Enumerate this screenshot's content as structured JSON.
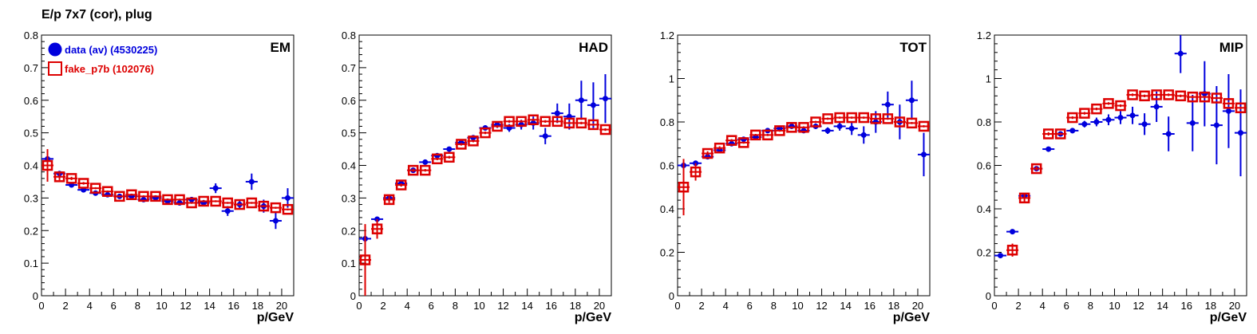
{
  "title": "E/p 7x7 (cor), plug",
  "colors": {
    "data": "#0000dd",
    "fake": "#dd0000"
  },
  "legend": [
    {
      "label": "data (av) (4530225)",
      "marker": "filled-circle",
      "color": "#0000dd"
    },
    {
      "label": "fake_p7b (102076)",
      "marker": "open-square",
      "color": "#dd0000"
    }
  ],
  "chart_data": [
    {
      "type": "scatter",
      "panel_label": "EM",
      "xlabel": "p/GeV",
      "ylabel": "",
      "xlim": [
        0,
        21
      ],
      "ylim": [
        0,
        0.8
      ],
      "xticks": [
        0,
        2,
        4,
        6,
        8,
        10,
        12,
        14,
        16,
        18,
        20
      ],
      "yticks": [
        0,
        0.1,
        0.2,
        0.3,
        0.4,
        0.5,
        0.6,
        0.7,
        0.8
      ],
      "ytick_labels": [
        "0",
        "0.1",
        "0.2",
        "0.3",
        "0.4",
        "0.5",
        "0.6",
        "0.7",
        "0.8"
      ],
      "legend_position": "top-left",
      "series": [
        {
          "name": "data (av) (4530225)",
          "x": [
            0.5,
            1.5,
            2.5,
            3.5,
            4.5,
            5.5,
            6.5,
            7.5,
            8.5,
            9.5,
            10.5,
            11.5,
            12.5,
            13.5,
            14.5,
            15.5,
            16.5,
            17.5,
            18.5,
            19.5,
            20.5
          ],
          "y": [
            0.42,
            0.375,
            0.34,
            0.325,
            0.315,
            0.31,
            0.305,
            0.305,
            0.295,
            0.3,
            0.29,
            0.285,
            0.295,
            0.285,
            0.33,
            0.26,
            0.28,
            0.35,
            0.275,
            0.23,
            0.3
          ],
          "err": [
            0.01,
            0.006,
            0.005,
            0.004,
            0.004,
            0.004,
            0.004,
            0.005,
            0.005,
            0.006,
            0.006,
            0.007,
            0.008,
            0.009,
            0.015,
            0.015,
            0.015,
            0.025,
            0.02,
            0.025,
            0.03
          ]
        },
        {
          "name": "fake_p7b (102076)",
          "x": [
            0.5,
            1.5,
            2.5,
            3.5,
            4.5,
            5.5,
            6.5,
            7.5,
            8.5,
            9.5,
            10.5,
            11.5,
            12.5,
            13.5,
            14.5,
            15.5,
            16.5,
            17.5,
            18.5,
            19.5,
            20.5
          ],
          "y": [
            0.4,
            0.365,
            0.36,
            0.345,
            0.33,
            0.32,
            0.305,
            0.31,
            0.305,
            0.305,
            0.295,
            0.295,
            0.285,
            0.29,
            0.29,
            0.285,
            0.28,
            0.285,
            0.275,
            0.27,
            0.265
          ],
          "err": [
            0.05,
            0.01,
            0.005,
            0.004,
            0.003,
            0.003,
            0.003,
            0.003,
            0.003,
            0.003,
            0.003,
            0.003,
            0.003,
            0.003,
            0.003,
            0.003,
            0.003,
            0.003,
            0.003,
            0.003,
            0.003
          ]
        }
      ]
    },
    {
      "type": "scatter",
      "panel_label": "HAD",
      "xlabel": "p/GeV",
      "ylabel": "",
      "xlim": [
        0,
        21
      ],
      "ylim": [
        0,
        0.8
      ],
      "xticks": [
        0,
        2,
        4,
        6,
        8,
        10,
        12,
        14,
        16,
        18,
        20
      ],
      "yticks": [
        0,
        0.1,
        0.2,
        0.3,
        0.4,
        0.5,
        0.6,
        0.7,
        0.8
      ],
      "ytick_labels": [
        "0",
        "0.1",
        "0.2",
        "0.3",
        "0.4",
        "0.5",
        "0.6",
        "0.7",
        "0.8"
      ],
      "series": [
        {
          "name": "data (av) (4530225)",
          "x": [
            0.5,
            1.5,
            2.5,
            3.5,
            4.5,
            5.5,
            6.5,
            7.5,
            8.5,
            9.5,
            10.5,
            11.5,
            12.5,
            13.5,
            14.5,
            15.5,
            16.5,
            17.5,
            18.5,
            19.5,
            20.5
          ],
          "y": [
            0.175,
            0.235,
            0.3,
            0.345,
            0.385,
            0.41,
            0.43,
            0.45,
            0.47,
            0.485,
            0.515,
            0.525,
            0.515,
            0.525,
            0.53,
            0.49,
            0.56,
            0.55,
            0.6,
            0.585,
            0.605
          ],
          "err": [
            0.01,
            0.006,
            0.005,
            0.005,
            0.005,
            0.005,
            0.006,
            0.006,
            0.007,
            0.008,
            0.008,
            0.01,
            0.012,
            0.015,
            0.02,
            0.025,
            0.03,
            0.04,
            0.06,
            0.07,
            0.075
          ]
        },
        {
          "name": "fake_p7b (102076)",
          "x": [
            0.5,
            1.5,
            2.5,
            3.5,
            4.5,
            5.5,
            6.5,
            7.5,
            8.5,
            9.5,
            10.5,
            11.5,
            12.5,
            13.5,
            14.5,
            15.5,
            16.5,
            17.5,
            18.5,
            19.5,
            20.5
          ],
          "y": [
            0.11,
            0.205,
            0.295,
            0.34,
            0.385,
            0.385,
            0.42,
            0.425,
            0.465,
            0.475,
            0.5,
            0.52,
            0.535,
            0.535,
            0.54,
            0.535,
            0.535,
            0.53,
            0.53,
            0.525,
            0.51
          ],
          "err": [
            0.11,
            0.03,
            0.01,
            0.005,
            0.005,
            0.004,
            0.004,
            0.004,
            0.004,
            0.004,
            0.004,
            0.004,
            0.004,
            0.004,
            0.004,
            0.004,
            0.004,
            0.004,
            0.004,
            0.004,
            0.004
          ]
        }
      ]
    },
    {
      "type": "scatter",
      "panel_label": "TOT",
      "xlabel": "p/GeV",
      "ylabel": "",
      "xlim": [
        0,
        21
      ],
      "ylim": [
        0,
        1.2
      ],
      "xticks": [
        0,
        2,
        4,
        6,
        8,
        10,
        12,
        14,
        16,
        18,
        20
      ],
      "yticks": [
        0,
        0.2,
        0.4,
        0.6,
        0.8,
        1.0,
        1.2
      ],
      "ytick_labels": [
        "0",
        "0.2",
        "0.4",
        "0.6",
        "0.8",
        "1",
        "1.2"
      ],
      "series": [
        {
          "name": "data (av) (4530225)",
          "x": [
            0.5,
            1.5,
            2.5,
            3.5,
            4.5,
            5.5,
            6.5,
            7.5,
            8.5,
            9.5,
            10.5,
            11.5,
            12.5,
            13.5,
            14.5,
            15.5,
            16.5,
            17.5,
            18.5,
            19.5,
            20.5
          ],
          "y": [
            0.6,
            0.61,
            0.64,
            0.67,
            0.7,
            0.72,
            0.73,
            0.76,
            0.77,
            0.78,
            0.76,
            0.78,
            0.76,
            0.78,
            0.77,
            0.74,
            0.8,
            0.88,
            0.8,
            0.9,
            0.65
          ],
          "err": [
            0.01,
            0.008,
            0.006,
            0.005,
            0.005,
            0.005,
            0.006,
            0.006,
            0.008,
            0.008,
            0.01,
            0.012,
            0.015,
            0.02,
            0.03,
            0.04,
            0.05,
            0.06,
            0.08,
            0.09,
            0.1
          ]
        },
        {
          "name": "fake_p7b (102076)",
          "x": [
            0.5,
            1.5,
            2.5,
            3.5,
            4.5,
            5.5,
            6.5,
            7.5,
            8.5,
            9.5,
            10.5,
            11.5,
            12.5,
            13.5,
            14.5,
            15.5,
            16.5,
            17.5,
            18.5,
            19.5,
            20.5
          ],
          "y": [
            0.5,
            0.57,
            0.655,
            0.68,
            0.715,
            0.705,
            0.74,
            0.74,
            0.76,
            0.775,
            0.775,
            0.8,
            0.815,
            0.82,
            0.82,
            0.82,
            0.815,
            0.815,
            0.8,
            0.795,
            0.78
          ],
          "err": [
            0.13,
            0.04,
            0.01,
            0.008,
            0.006,
            0.005,
            0.005,
            0.005,
            0.005,
            0.005,
            0.005,
            0.005,
            0.005,
            0.005,
            0.005,
            0.005,
            0.005,
            0.005,
            0.005,
            0.005,
            0.005
          ]
        }
      ]
    },
    {
      "type": "scatter",
      "panel_label": "MIP",
      "xlabel": "p/GeV",
      "ylabel": "",
      "xlim": [
        0,
        21
      ],
      "ylim": [
        0,
        1.2
      ],
      "xticks": [
        0,
        2,
        4,
        6,
        8,
        10,
        12,
        14,
        16,
        18,
        20
      ],
      "yticks": [
        0,
        0.2,
        0.4,
        0.6,
        0.8,
        1.0,
        1.2
      ],
      "ytick_labels": [
        "0",
        "0.2",
        "0.4",
        "0.6",
        "0.8",
        "1",
        "1.2"
      ],
      "series": [
        {
          "name": "data (av) (4530225)",
          "x": [
            0.5,
            1.5,
            2.5,
            3.5,
            4.5,
            5.5,
            6.5,
            7.5,
            8.5,
            9.5,
            10.5,
            11.5,
            12.5,
            13.5,
            14.5,
            15.5,
            16.5,
            17.5,
            18.5,
            19.5,
            20.5
          ],
          "y": [
            0.185,
            0.295,
            0.46,
            0.585,
            0.675,
            0.745,
            0.76,
            0.79,
            0.8,
            0.81,
            0.82,
            0.83,
            0.79,
            0.87,
            0.745,
            1.115,
            0.795,
            0.93,
            0.785,
            0.85,
            0.75
          ],
          "err": [
            0.01,
            0.008,
            0.008,
            0.008,
            0.008,
            0.01,
            0.012,
            0.015,
            0.02,
            0.025,
            0.03,
            0.04,
            0.05,
            0.07,
            0.08,
            0.09,
            0.13,
            0.15,
            0.18,
            0.17,
            0.2
          ]
        },
        {
          "name": "fake_p7b (102076)",
          "x": [
            0.5,
            1.5,
            2.5,
            3.5,
            4.5,
            5.5,
            6.5,
            7.5,
            8.5,
            9.5,
            10.5,
            11.5,
            12.5,
            13.5,
            14.5,
            15.5,
            16.5,
            17.5,
            18.5,
            19.5,
            20.5
          ],
          "y": [
            null,
            0.21,
            0.45,
            0.585,
            0.745,
            0.745,
            0.82,
            0.84,
            0.86,
            0.885,
            0.875,
            0.925,
            0.92,
            0.925,
            0.925,
            0.92,
            0.915,
            0.915,
            0.91,
            0.885,
            0.865
          ],
          "err": [
            null,
            0.03,
            0.02,
            0.01,
            0.008,
            0.006,
            0.006,
            0.006,
            0.006,
            0.006,
            0.006,
            0.006,
            0.006,
            0.006,
            0.006,
            0.006,
            0.006,
            0.006,
            0.006,
            0.006,
            0.006
          ]
        }
      ]
    }
  ]
}
